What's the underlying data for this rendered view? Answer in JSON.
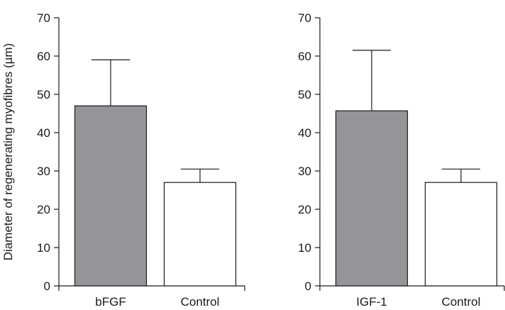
{
  "chart_data": [
    {
      "type": "bar",
      "categories": [
        "bFGF",
        "Control"
      ],
      "values": [
        47,
        27
      ],
      "error_upper": [
        59,
        30.5
      ],
      "colors": [
        "#939598",
        "#ffffff"
      ],
      "ylabel": "Diameter of regenerating myofibres (µm)",
      "ylim": [
        0,
        70
      ],
      "yticks": [
        "0",
        "10",
        "20",
        "30",
        "40",
        "50",
        "60",
        "70"
      ],
      "grid": false
    },
    {
      "type": "bar",
      "categories": [
        "IGF-1",
        "Control"
      ],
      "values": [
        45.7,
        27
      ],
      "error_upper": [
        61.5,
        30.5
      ],
      "colors": [
        "#939598",
        "#ffffff"
      ],
      "ylabel": "",
      "ylim": [
        0,
        70
      ],
      "yticks": [
        "0",
        "10",
        "20",
        "30",
        "40",
        "50",
        "60",
        "70"
      ],
      "grid": false
    }
  ]
}
